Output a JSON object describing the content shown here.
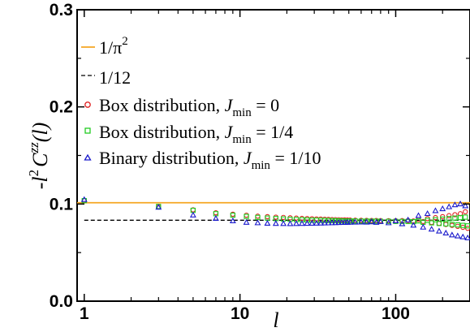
{
  "chart_data": {
    "type": "scatter",
    "xscale": "log",
    "xlim": [
      0.9,
      300
    ],
    "ylim": [
      0,
      0.3
    ],
    "xticks": [
      {
        "value": 1,
        "label": "1"
      },
      {
        "value": 10,
        "label": "10"
      },
      {
        "value": 100,
        "label": "100"
      }
    ],
    "yticks": [
      {
        "value": 0.0,
        "label": "0.0"
      },
      {
        "value": 0.1,
        "label": "0.1"
      },
      {
        "value": 0.2,
        "label": "0.2"
      },
      {
        "value": 0.3,
        "label": "0.3"
      }
    ],
    "xlabel": {
      "main": "l"
    },
    "ylabel": {
      "prefix": "-",
      "main1": "l",
      "sup1": "2",
      "main2": "C",
      "sup2": "zz",
      "suffix": "(l)"
    },
    "reference_lines": [
      {
        "label_main": "1/π",
        "label_sup": "2",
        "value": 0.1013,
        "color": "#f5a623",
        "style": "solid"
      },
      {
        "label_main": "1/12",
        "label_sup": "",
        "value": 0.0833,
        "color": "#000000",
        "style": "dashed"
      }
    ],
    "series": [
      {
        "name_main": "Box distribution, ",
        "name_italic": "J",
        "name_sub": "min",
        "name_tail": " = 0",
        "marker": "circle",
        "color": "#e02020",
        "x": [
          1,
          3,
          5,
          7,
          9,
          11,
          13,
          15,
          17,
          19,
          21,
          23,
          25,
          27,
          29,
          31,
          33,
          35,
          37,
          39,
          41,
          43,
          45,
          47,
          49,
          51,
          55,
          60,
          65,
          70,
          75,
          80,
          90,
          100,
          110,
          120,
          130,
          140,
          150,
          160,
          170,
          180,
          190,
          200,
          210,
          220,
          230,
          240,
          250,
          260,
          270,
          280,
          290
        ],
        "y": [
          0.1035,
          0.097,
          0.094,
          0.091,
          0.0895,
          0.0885,
          0.0875,
          0.087,
          0.0865,
          0.0862,
          0.0858,
          0.0855,
          0.0852,
          0.085,
          0.0848,
          0.0846,
          0.0845,
          0.0843,
          0.0842,
          0.084,
          0.0839,
          0.0838,
          0.0837,
          0.0836,
          0.0835,
          0.0834,
          0.0833,
          0.0832,
          0.0831,
          0.083,
          0.083,
          0.0829,
          0.0828,
          0.0828,
          0.0829,
          0.083,
          0.0825,
          0.084,
          0.082,
          0.085,
          0.081,
          0.086,
          0.08,
          0.087,
          0.079,
          0.088,
          0.078,
          0.089,
          0.077,
          0.09,
          0.076,
          0.092,
          0.075
        ]
      },
      {
        "name_main": "Box distribution, ",
        "name_italic": "J",
        "name_sub": "min",
        "name_tail": " = 1/4",
        "marker": "square",
        "color": "#22cc22",
        "x": [
          1,
          3,
          5,
          7,
          9,
          11,
          13,
          15,
          17,
          19,
          21,
          23,
          25,
          27,
          29,
          31,
          33,
          35,
          37,
          39,
          41,
          43,
          45,
          47,
          49,
          51,
          55,
          60,
          65,
          70,
          75,
          80,
          90,
          100,
          110,
          120,
          130,
          140,
          150,
          160,
          170,
          180,
          190,
          200,
          210,
          220,
          230,
          240,
          250,
          260,
          270,
          280,
          290
        ],
        "y": [
          0.1035,
          0.0975,
          0.0935,
          0.09,
          0.0885,
          0.0872,
          0.0862,
          0.0855,
          0.085,
          0.0846,
          0.0843,
          0.084,
          0.0838,
          0.0836,
          0.0834,
          0.0833,
          0.0832,
          0.0831,
          0.083,
          0.0829,
          0.0828,
          0.0827,
          0.0827,
          0.0826,
          0.0826,
          0.0825,
          0.0825,
          0.0824,
          0.0824,
          0.0823,
          0.0823,
          0.0822,
          0.0822,
          0.0821,
          0.0821,
          0.082,
          0.0818,
          0.0826,
          0.0812,
          0.0832,
          0.0806,
          0.0838,
          0.08,
          0.0845,
          0.0795,
          0.085,
          0.079,
          0.0855,
          0.0785,
          0.086,
          0.078,
          0.0865,
          0.0775
        ]
      },
      {
        "name_main": "Binary distribution, ",
        "name_italic": "J",
        "name_sub": "min",
        "name_tail": " = 1/10",
        "marker": "triangle",
        "color": "#1a1acc",
        "x": [
          1,
          3,
          5,
          7,
          9,
          11,
          13,
          15,
          17,
          19,
          21,
          23,
          25,
          27,
          29,
          31,
          33,
          35,
          37,
          39,
          41,
          43,
          45,
          47,
          49,
          51,
          55,
          60,
          65,
          70,
          75,
          80,
          90,
          100,
          110,
          120,
          130,
          140,
          150,
          160,
          170,
          180,
          190,
          200,
          210,
          220,
          230,
          240,
          250,
          260,
          270,
          280,
          290
        ],
        "y": [
          0.1045,
          0.0965,
          0.0885,
          0.085,
          0.0825,
          0.081,
          0.0805,
          0.08,
          0.0798,
          0.0797,
          0.0796,
          0.0797,
          0.0798,
          0.0799,
          0.08,
          0.0801,
          0.0802,
          0.0803,
          0.0804,
          0.0805,
          0.0806,
          0.0807,
          0.0808,
          0.0809,
          0.081,
          0.0811,
          0.0812,
          0.0813,
          0.0812,
          0.0815,
          0.081,
          0.0818,
          0.0805,
          0.0825,
          0.0795,
          0.0835,
          0.078,
          0.088,
          0.076,
          0.09,
          0.074,
          0.093,
          0.072,
          0.095,
          0.07,
          0.097,
          0.068,
          0.099,
          0.067,
          0.1,
          0.066,
          0.098,
          0.065
        ]
      }
    ]
  }
}
